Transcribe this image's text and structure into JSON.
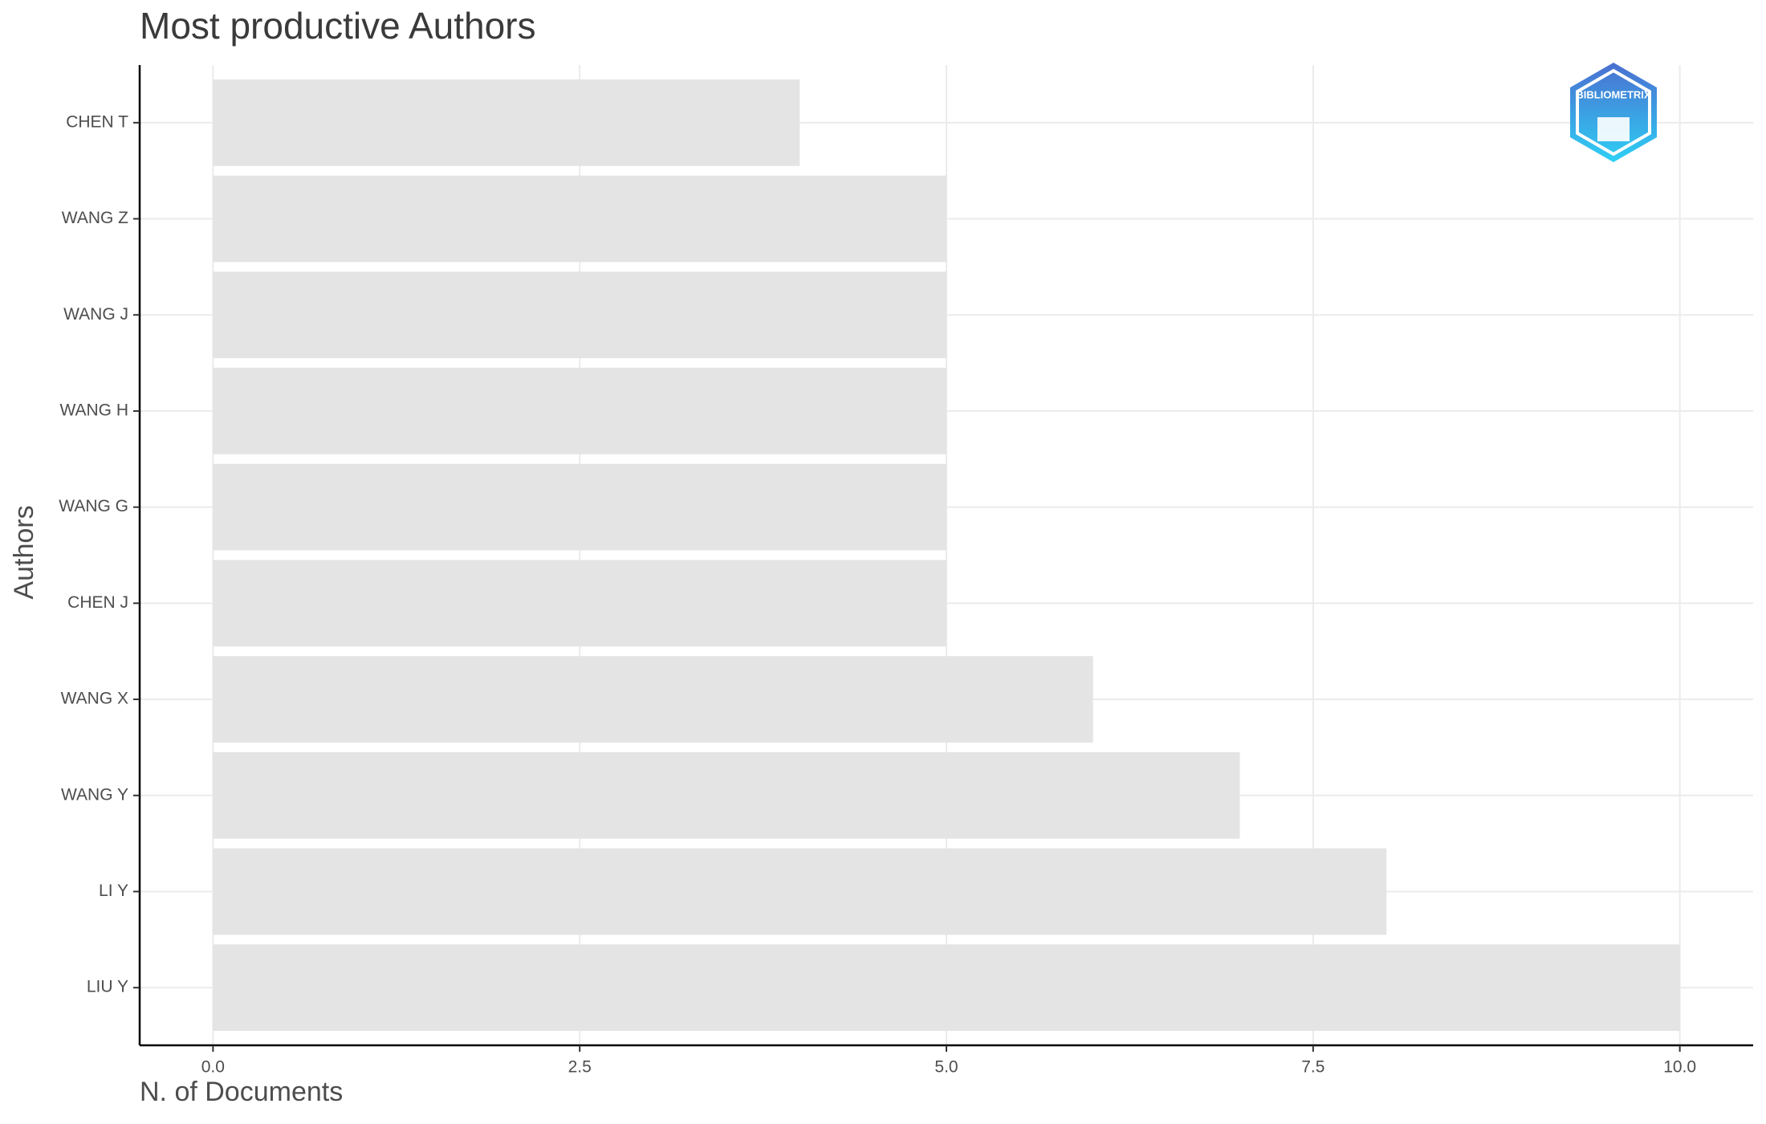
{
  "chart_data": {
    "type": "bar",
    "orientation": "horizontal",
    "title": "Most productive Authors",
    "x_label": "N. of Documents",
    "y_label": "Authors",
    "categories": [
      "CHEN T",
      "WANG Z",
      "WANG J",
      "WANG H",
      "WANG G",
      "CHEN J",
      "WANG X",
      "WANG Y",
      "LI Y",
      "LIU Y"
    ],
    "values": [
      4,
      5,
      5,
      5,
      5,
      5,
      6,
      7,
      8,
      10
    ],
    "color": "#e4e4e4",
    "xlim": [
      -0.5,
      10.5
    ],
    "xticks": [
      {
        "value": 0,
        "label": "0.0"
      },
      {
        "value": 2.5,
        "label": "2.5"
      },
      {
        "value": 5,
        "label": "5.0"
      },
      {
        "value": 7.5,
        "label": "7.5"
      },
      {
        "value": 10,
        "label": "10.0"
      }
    ],
    "grid": true,
    "logo": "BIBLIOMETRIX"
  }
}
